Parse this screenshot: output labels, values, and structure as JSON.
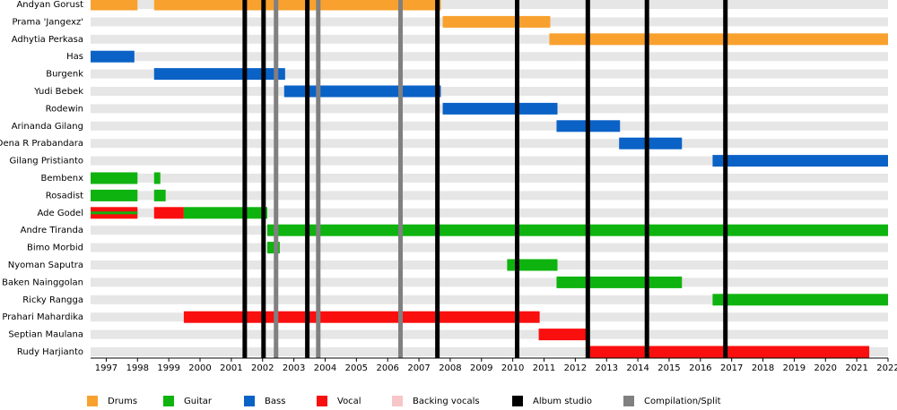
{
  "chart_data": {
    "type": "timeline",
    "xlim": [
      1996.5,
      2022
    ],
    "xticks": [
      1997,
      1998,
      1999,
      2000,
      2001,
      2002,
      2003,
      2004,
      2005,
      2006,
      2007,
      2008,
      2009,
      2010,
      2011,
      2012,
      2013,
      2014,
      2015,
      2016,
      2017,
      2018,
      2019,
      2020,
      2021,
      2022
    ],
    "series": [
      {
        "name": "Drums",
        "color": "#f9a12e"
      },
      {
        "name": "Guitar",
        "color": "#0fb30f"
      },
      {
        "name": "Bass",
        "color": "#0b62c6"
      },
      {
        "name": "Vocal",
        "color": "#fa0f0f"
      },
      {
        "name": "Backing vocals",
        "color": "#f8c6c8"
      }
    ],
    "events": [
      {
        "name": "Album studio",
        "color": "#000000",
        "x": [
          2001.43,
          2002.03,
          2003.43,
          2007.59,
          2010.14,
          2012.4,
          2014.29,
          2016.8
        ]
      },
      {
        "name": "Compilation/Split",
        "color": "#808080",
        "x": [
          2002.43,
          2003.78,
          2006.41
        ]
      }
    ],
    "members": [
      {
        "name": "Andyan Gorust",
        "bars": [
          {
            "role": "Drums",
            "start": 1996.5,
            "end": 1998.0
          },
          {
            "role": "Drums",
            "start": 1998.53,
            "end": 2007.7
          }
        ]
      },
      {
        "name": "Prama 'Jangexz'",
        "bars": [
          {
            "role": "Drums",
            "start": 2007.76,
            "end": 2011.2
          }
        ]
      },
      {
        "name": "Adhytia Perkasa",
        "bars": [
          {
            "role": "Drums",
            "start": 2011.17,
            "end": 2022
          }
        ]
      },
      {
        "name": "Has",
        "bars": [
          {
            "role": "Bass",
            "start": 1996.5,
            "end": 1997.9
          }
        ]
      },
      {
        "name": "Burgenk",
        "bars": [
          {
            "role": "Bass",
            "start": 1998.53,
            "end": 2002.72
          }
        ]
      },
      {
        "name": "Yudi Bebek",
        "bars": [
          {
            "role": "Bass",
            "start": 2002.69,
            "end": 2007.7
          }
        ]
      },
      {
        "name": "Rodewin",
        "bars": [
          {
            "role": "Bass",
            "start": 2007.76,
            "end": 2011.43
          }
        ]
      },
      {
        "name": "Arinanda Gilang",
        "bars": [
          {
            "role": "Bass",
            "start": 2011.4,
            "end": 2013.43
          }
        ]
      },
      {
        "name": "Dena R Prabandara",
        "bars": [
          {
            "role": "Bass",
            "start": 2013.4,
            "end": 2015.41
          }
        ]
      },
      {
        "name": "Gilang Pristianto",
        "bars": [
          {
            "role": "Bass",
            "start": 2016.39,
            "end": 2022
          }
        ]
      },
      {
        "name": "Bembenx",
        "bars": [
          {
            "role": "Guitar",
            "start": 1996.5,
            "end": 1998.0
          },
          {
            "role": "Guitar",
            "start": 1998.53,
            "end": 1998.73
          }
        ]
      },
      {
        "name": "Rosadist",
        "bars": [
          {
            "role": "Guitar",
            "start": 1996.5,
            "end": 1998.0
          },
          {
            "role": "Guitar",
            "start": 1998.53,
            "end": 1998.9
          }
        ]
      },
      {
        "name": "Ade Godel",
        "bars": [
          {
            "role": "Vocal",
            "start": 1996.5,
            "end": 1998.0
          },
          {
            "role": "Guitar",
            "start": 1996.5,
            "end": 1998.0
          },
          {
            "role": "Vocal",
            "start": 1998.53,
            "end": 1999.48
          },
          {
            "role": "Guitar",
            "start": 1999.48,
            "end": 2002.15
          }
        ]
      },
      {
        "name": "Andre Tiranda",
        "bars": [
          {
            "role": "Guitar",
            "start": 2002.15,
            "end": 2022
          }
        ]
      },
      {
        "name": "Bimo Morbid",
        "bars": [
          {
            "role": "Guitar",
            "start": 2002.15,
            "end": 2002.55
          }
        ]
      },
      {
        "name": "Nyoman Saputra",
        "bars": [
          {
            "role": "Guitar",
            "start": 2009.82,
            "end": 2011.43
          }
        ]
      },
      {
        "name": "Baken Nainggolan",
        "bars": [
          {
            "role": "Guitar",
            "start": 2011.4,
            "end": 2015.41
          }
        ]
      },
      {
        "name": "Ricky Rangga",
        "bars": [
          {
            "role": "Guitar",
            "start": 2016.39,
            "end": 2022
          }
        ]
      },
      {
        "name": "Prahari Mahardika",
        "bars": [
          {
            "role": "Vocal",
            "start": 1999.48,
            "end": 2010.86
          }
        ]
      },
      {
        "name": "Septian Maulana",
        "bars": [
          {
            "role": "Vocal",
            "start": 2010.83,
            "end": 2012.43
          }
        ]
      },
      {
        "name": "Rudy Harjianto",
        "bars": [
          {
            "role": "Vocal",
            "start": 2012.43,
            "end": 2021.4
          }
        ]
      }
    ]
  }
}
